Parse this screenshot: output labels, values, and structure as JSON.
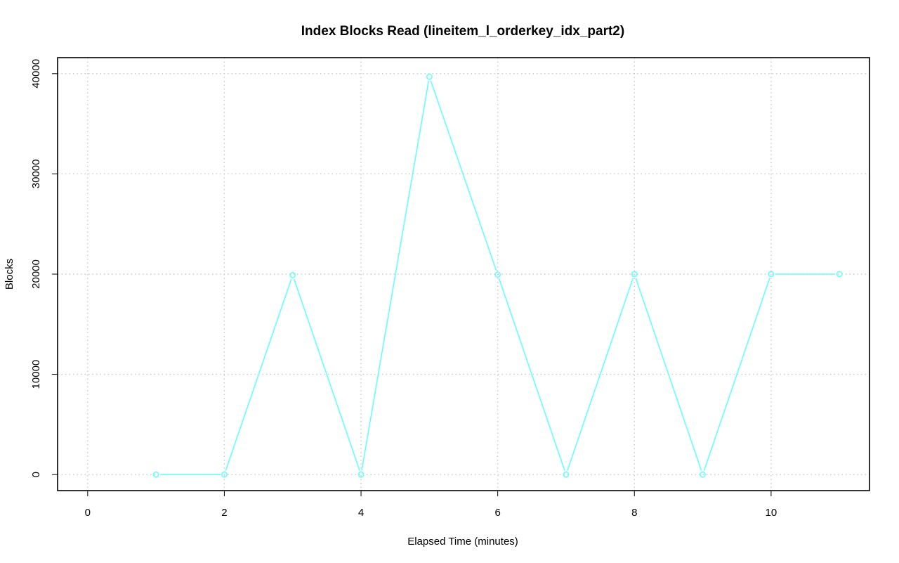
{
  "chart_data": {
    "type": "line",
    "title": "Index Blocks Read (lineitem_l_orderkey_idx_part2)",
    "xlabel": "Elapsed Time (minutes)",
    "ylabel": "Blocks",
    "xlim": [
      -0.44,
      11.44
    ],
    "ylim": [
      -1600,
      41600
    ],
    "x_ticks": [
      0,
      2,
      4,
      6,
      8,
      10
    ],
    "y_ticks": [
      0,
      10000,
      20000,
      30000,
      40000
    ],
    "grid": true,
    "markers": "open-circle",
    "series": [
      {
        "color": "#66ffff",
        "x": [
          1,
          2,
          3,
          4,
          5,
          6,
          7,
          8,
          9,
          10,
          11
        ],
        "values": [
          0,
          0,
          19900,
          0,
          39700,
          19950,
          0,
          20000,
          0,
          20000,
          20000
        ]
      }
    ]
  }
}
